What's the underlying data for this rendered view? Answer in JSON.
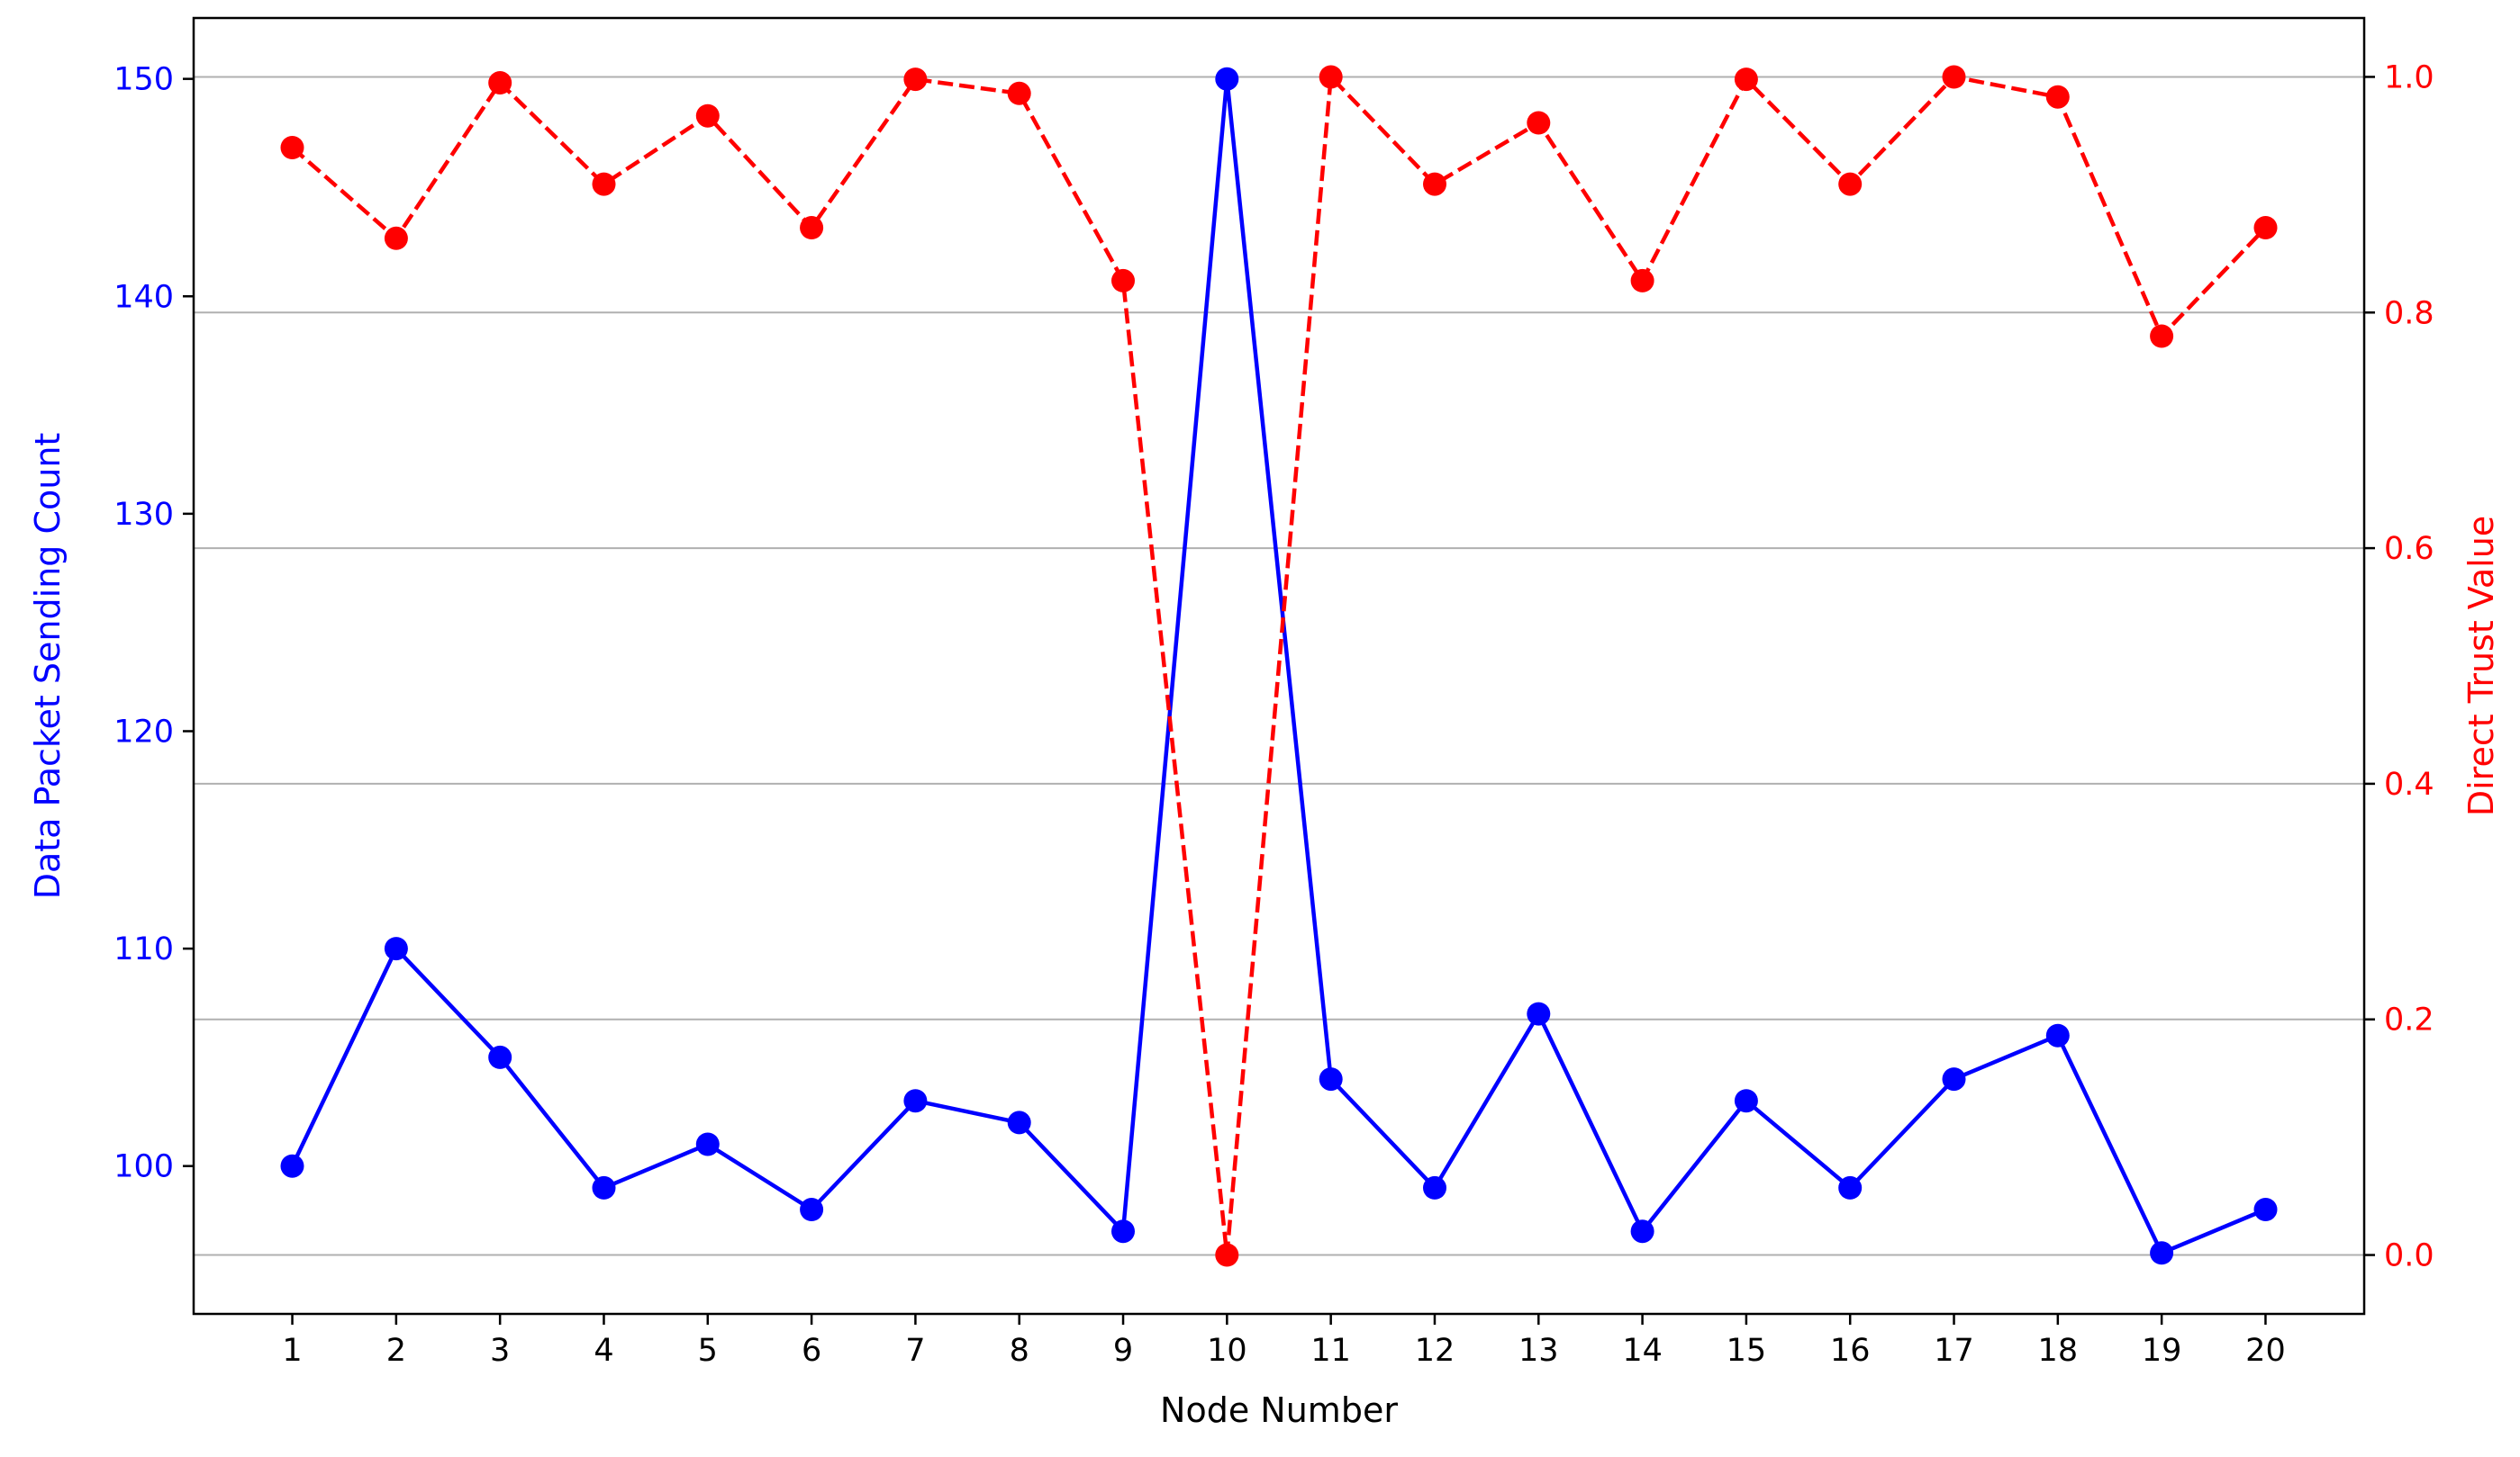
{
  "chart_data": {
    "type": "line",
    "xlabel": "Node Number",
    "ylabel_left": "Data Packet Sending Count",
    "ylabel_right": "Direct Trust Value",
    "x": [
      1,
      2,
      3,
      4,
      5,
      6,
      7,
      8,
      9,
      10,
      11,
      12,
      13,
      14,
      15,
      16,
      17,
      18,
      19,
      20
    ],
    "x_ticks": [
      "1",
      "2",
      "3",
      "4",
      "5",
      "6",
      "7",
      "8",
      "9",
      "10",
      "11",
      "12",
      "13",
      "14",
      "15",
      "16",
      "17",
      "18",
      "19",
      "20"
    ],
    "ylim_left": [
      93.2,
      152.8
    ],
    "yticks_left": [
      "100",
      "110",
      "120",
      "130",
      "140",
      "150"
    ],
    "ylim_right": [
      -0.05,
      1.05
    ],
    "yticks_right": [
      "0.0",
      "0.2",
      "0.4",
      "0.6",
      "0.8",
      "1.0"
    ],
    "grid": "horizontal, aligned to right axis ticks",
    "series": [
      {
        "axis": "left",
        "color": "#0000ff",
        "style": "solid",
        "marker": "circle",
        "values": [
          100,
          110,
          105,
          99,
          101,
          98,
          103,
          102,
          97,
          150,
          104,
          99,
          107,
          97,
          103,
          99,
          104,
          106,
          96,
          98
        ]
      },
      {
        "axis": "right",
        "color": "#ff0000",
        "style": "dashed",
        "marker": "circle",
        "values": [
          0.94,
          0.863,
          0.995,
          0.909,
          0.967,
          0.872,
          0.998,
          0.986,
          0.827,
          0.0,
          1.0,
          0.909,
          0.961,
          0.827,
          0.998,
          0.909,
          1.0,
          0.983,
          0.78,
          0.872
        ]
      }
    ]
  }
}
